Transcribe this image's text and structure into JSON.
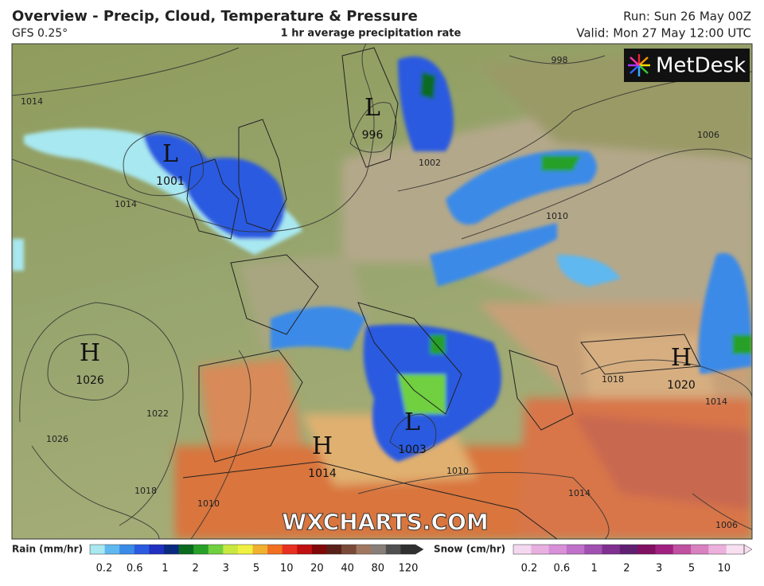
{
  "header": {
    "title": "Overview - Precip, Cloud, Temperature & Pressure",
    "model": "GFS 0.25°",
    "subtitle": "1 hr average precipitation rate",
    "run": "Run: Sun 26 May 00Z",
    "valid": "Valid: Mon 27 May 12:00 UTC"
  },
  "brand": "MetDesk",
  "watermark": "WXCHARTS.COM",
  "pressure_centers": [
    {
      "kind": "L",
      "value": 1001
    },
    {
      "kind": "L",
      "value": 996
    },
    {
      "kind": "H",
      "value": 1026
    },
    {
      "kind": "H",
      "value": 1014
    },
    {
      "kind": "L",
      "value": 1003
    },
    {
      "kind": "H",
      "value": 1020
    }
  ],
  "isobar_labels": [
    1014,
    998,
    1006,
    1002,
    1014,
    1010,
    1018,
    1022,
    1026,
    1014,
    1018,
    1010,
    1010,
    1014,
    1006
  ],
  "legend": {
    "rain": {
      "label": "Rain (mm/hr)",
      "ticks": [
        0.2,
        0.6,
        1,
        2,
        3,
        5,
        10,
        20,
        40,
        80,
        120
      ],
      "colors": [
        "#a8e8f0",
        "#5fb8f0",
        "#3a8ae8",
        "#2a5ae0",
        "#2030c0",
        "#0a2a80",
        "#0a6a20",
        "#28a028",
        "#70d040",
        "#c8e840",
        "#f0f040",
        "#f0b030",
        "#f07020",
        "#e83020",
        "#c01010",
        "#800808",
        "#582018",
        "#7a4a38",
        "#a07860",
        "#888078",
        "#505050",
        "#303030"
      ]
    },
    "snow": {
      "label": "Snow (cm/hr)",
      "ticks": [
        0.2,
        0.6,
        1,
        2,
        3,
        5,
        10
      ],
      "colors": [
        "#f4d8f0",
        "#e8b0e0",
        "#d890d8",
        "#c070c8",
        "#a050b0",
        "#803090",
        "#602070",
        "#801060",
        "#a02080",
        "#c050a0",
        "#d880c0",
        "#ecb0dc",
        "#f8e0f0"
      ]
    }
  }
}
